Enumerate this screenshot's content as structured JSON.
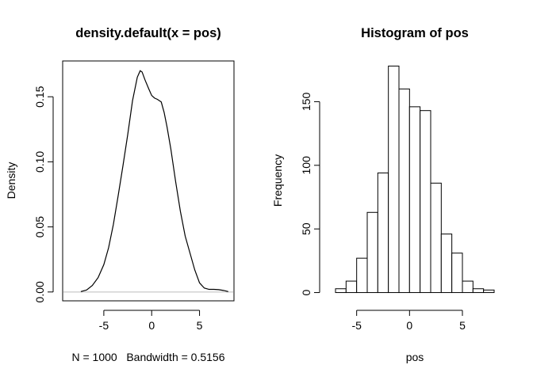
{
  "chart_data": [
    {
      "type": "line",
      "title": "density.default(x = pos)",
      "xlabel": "N = 1000   Bandwidth = 0.5156",
      "ylabel": "Density",
      "xlim": [
        -9.3,
        8.6
      ],
      "ylim": [
        -0.0068,
        0.1775
      ],
      "xticks": [
        -5,
        0,
        5
      ],
      "xtick_labels": [
        "-5",
        "0",
        "5"
      ],
      "yticks": [
        0.0,
        0.05,
        0.1,
        0.15
      ],
      "ytick_labels": [
        "0.00",
        "0.05",
        "0.10",
        "0.15"
      ],
      "zero_line_color": "#bebebe",
      "series": [
        {
          "x": [
            -7.4,
            -6.8,
            -6.2,
            -5.6,
            -5.0,
            -4.5,
            -4.0,
            -3.5,
            -3.0,
            -2.5,
            -2.0,
            -1.5,
            -1.2,
            -1.0,
            -0.7,
            -0.3,
            0.0,
            0.3,
            0.6,
            1.0,
            1.3,
            1.6,
            2.0,
            2.5,
            3.0,
            3.5,
            4.0,
            4.5,
            5.0,
            5.5,
            6.0,
            6.5,
            7.0,
            7.5,
            8.0
          ],
          "y": [
            0.0003,
            0.0015,
            0.005,
            0.011,
            0.021,
            0.034,
            0.052,
            0.074,
            0.097,
            0.121,
            0.147,
            0.165,
            0.17,
            0.169,
            0.163,
            0.156,
            0.151,
            0.149,
            0.148,
            0.146,
            0.138,
            0.127,
            0.11,
            0.085,
            0.062,
            0.043,
            0.03,
            0.017,
            0.007,
            0.003,
            0.002,
            0.002,
            0.0018,
            0.0012,
            0.0003
          ]
        }
      ]
    },
    {
      "type": "bar",
      "title": "Histogram of pos",
      "xlabel": "pos",
      "ylabel": "Frequency",
      "xlim": [
        -7.6,
        8.6
      ],
      "ylim": [
        -6.5,
        182
      ],
      "xticks": [
        -5,
        0,
        5
      ],
      "xtick_labels": [
        "-5",
        "0",
        "5"
      ],
      "yticks": [
        0,
        50,
        100,
        150
      ],
      "ytick_labels": [
        "0",
        "50",
        "100",
        "150"
      ],
      "bin_edges": [
        -7,
        -6,
        -5,
        -4,
        -3,
        -2,
        -1,
        0,
        1,
        2,
        3,
        4,
        5,
        6,
        7,
        8
      ],
      "counts": [
        3,
        9,
        27,
        63,
        94,
        178,
        160,
        146,
        143,
        86,
        46,
        31,
        9,
        3,
        2
      ]
    }
  ]
}
